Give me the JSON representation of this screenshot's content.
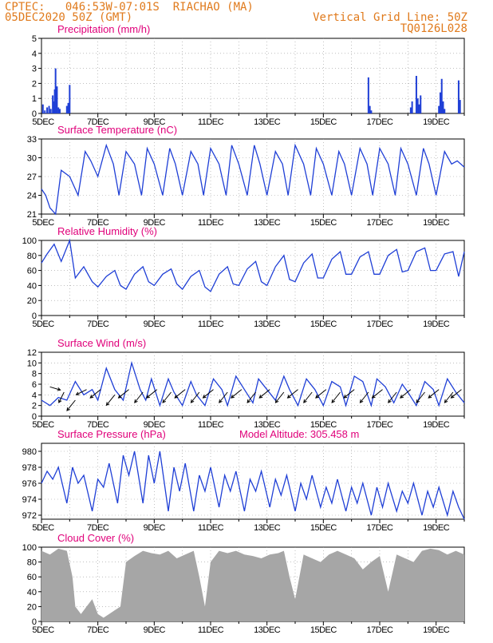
{
  "header": {
    "line1_left": "CPTEC:   046:53W-07:01S  RIACHAO (MA)",
    "line2_left": "05DEC2020 50Z (GMT)",
    "line2_right": "Vertical Grid Line: 50Z",
    "line3_right": "TQ0126L028"
  },
  "colors": {
    "header_text": "#e07a1c",
    "panel_title": "#e0007a",
    "series": "#1f3fd6",
    "cloud": "#a6a6a6",
    "wind_arrow": "#000000"
  },
  "x_tick_labels": [
    "5DEC",
    "7DEC",
    "9DEC",
    "11DEC",
    "13DEC",
    "15DEC",
    "17DEC",
    "19DEC"
  ],
  "chart_data": [
    {
      "type": "bar",
      "title": "Precipitation (mm/h)",
      "ylim": [
        0,
        5
      ],
      "yticks": [
        "0",
        "1",
        "2",
        "3",
        "4",
        "5"
      ],
      "x_days": [
        0.05,
        0.12,
        0.2,
        0.27,
        0.33,
        0.4,
        0.44,
        0.47,
        0.5,
        0.55,
        0.6,
        0.65,
        0.9,
        0.95,
        1.0,
        11.6,
        11.65,
        11.7,
        13.1,
        13.15,
        13.3,
        13.35,
        13.4,
        13.45,
        14.1,
        14.15,
        14.2,
        14.25,
        14.3,
        14.8,
        14.85
      ],
      "values": [
        0.6,
        0.2,
        0.4,
        0.5,
        0.3,
        1.2,
        0.8,
        1.6,
        3.0,
        1.8,
        0.4,
        0.3,
        0.5,
        0.7,
        1.9,
        2.4,
        0.5,
        0.2,
        0.4,
        0.8,
        2.5,
        1.0,
        0.6,
        1.2,
        0.5,
        1.4,
        2.3,
        0.8,
        0.3,
        2.2,
        0.9
      ]
    },
    {
      "type": "line",
      "title": "Surface Temperature (nC)",
      "ylim": [
        21,
        33
      ],
      "yticks": [
        "21",
        "24",
        "27",
        "30",
        "33"
      ],
      "series": [
        {
          "x": [
            0,
            0.15,
            0.3,
            0.5,
            0.7,
            1.0,
            1.3,
            1.55,
            1.75,
            2.0,
            2.3,
            2.55,
            2.75,
            3.0,
            3.3,
            3.55,
            3.75,
            4.0,
            4.3,
            4.55,
            4.75,
            5.0,
            5.3,
            5.55,
            5.75,
            6.0,
            6.3,
            6.55,
            6.75,
            7.0,
            7.3,
            7.55,
            7.75,
            8.0,
            8.3,
            8.55,
            8.75,
            9.0,
            9.3,
            9.55,
            9.75,
            10.0,
            10.3,
            10.55,
            10.75,
            11.0,
            11.3,
            11.55,
            11.75,
            12.0,
            12.3,
            12.55,
            12.75,
            13.0,
            13.3,
            13.55,
            13.75,
            14.0,
            14.3,
            14.55,
            14.75,
            15.0
          ],
          "values": [
            25,
            24,
            22,
            21,
            28,
            27,
            24,
            31,
            29.5,
            27,
            32,
            29,
            24,
            31,
            29,
            24,
            31.5,
            29,
            24,
            31.5,
            29,
            24,
            31,
            29,
            24,
            31.5,
            29,
            24,
            32,
            29,
            24,
            32,
            29,
            24,
            31,
            29,
            24,
            32,
            29,
            24,
            31.5,
            29,
            24,
            31,
            29,
            24,
            31.5,
            29,
            24,
            31.5,
            29,
            24,
            31.5,
            29,
            24,
            31.5,
            29,
            24,
            31,
            29,
            29.5,
            28.5
          ]
        }
      ]
    },
    {
      "type": "line",
      "title": "Relative Humidity (%)",
      "ylim": [
        0,
        100
      ],
      "yticks": [
        "0",
        "20",
        "40",
        "60",
        "80",
        "100"
      ],
      "series": [
        {
          "x": [
            0,
            0.2,
            0.45,
            0.7,
            1.0,
            1.2,
            1.5,
            1.8,
            2.0,
            2.3,
            2.6,
            2.8,
            3.0,
            3.3,
            3.6,
            3.8,
            4.0,
            4.3,
            4.6,
            4.8,
            5.0,
            5.3,
            5.6,
            5.8,
            6.0,
            6.3,
            6.6,
            6.8,
            7.0,
            7.3,
            7.6,
            7.8,
            8.0,
            8.3,
            8.6,
            8.8,
            9.0,
            9.3,
            9.6,
            9.8,
            10.0,
            10.3,
            10.6,
            10.8,
            11.0,
            11.3,
            11.6,
            11.8,
            12.0,
            12.3,
            12.6,
            12.8,
            13.0,
            13.3,
            13.6,
            13.8,
            14.0,
            14.3,
            14.6,
            14.8,
            15.0
          ],
          "values": [
            70,
            82,
            95,
            72,
            100,
            50,
            65,
            45,
            38,
            52,
            60,
            40,
            35,
            55,
            65,
            45,
            40,
            55,
            62,
            42,
            35,
            52,
            60,
            38,
            32,
            55,
            65,
            42,
            40,
            62,
            72,
            45,
            40,
            65,
            80,
            48,
            45,
            70,
            82,
            50,
            50,
            75,
            85,
            55,
            55,
            78,
            85,
            55,
            55,
            80,
            88,
            58,
            60,
            85,
            90,
            60,
            60,
            82,
            85,
            52,
            85
          ]
        }
      ]
    },
    {
      "type": "line",
      "title": "Surface Wind (m/s)",
      "ylim": [
        0,
        12
      ],
      "yticks": [
        "0",
        "2",
        "4",
        "6",
        "8",
        "10",
        "12"
      ],
      "series": [
        {
          "x": [
            0,
            0.3,
            0.6,
            0.9,
            1.2,
            1.5,
            1.8,
            2.0,
            2.3,
            2.6,
            2.9,
            3.2,
            3.5,
            3.7,
            3.9,
            4.2,
            4.5,
            4.7,
            5.0,
            5.3,
            5.5,
            5.8,
            6.1,
            6.4,
            6.6,
            6.9,
            7.2,
            7.5,
            7.7,
            8.0,
            8.3,
            8.6,
            8.8,
            9.1,
            9.4,
            9.7,
            10.0,
            10.3,
            10.6,
            10.8,
            11.1,
            11.4,
            11.7,
            11.9,
            12.2,
            12.5,
            12.8,
            13.0,
            13.3,
            13.6,
            13.9,
            14.1,
            14.4,
            14.7,
            15.0
          ],
          "values": [
            3.0,
            2.0,
            3.5,
            3.0,
            6.5,
            4.0,
            5.0,
            3.0,
            9.0,
            5.0,
            3.0,
            10.0,
            5.0,
            3.0,
            7.0,
            2.0,
            7.0,
            4.5,
            2.0,
            6.5,
            4.0,
            2.0,
            7.0,
            5.0,
            2.0,
            7.5,
            5.0,
            2.5,
            7.0,
            5.0,
            3.0,
            7.5,
            5.0,
            2.0,
            7.0,
            5.0,
            2.0,
            6.5,
            5.5,
            2.0,
            7.5,
            6.5,
            2.0,
            7.0,
            5.5,
            2.5,
            6.0,
            4.5,
            2.0,
            6.5,
            5.0,
            2.0,
            7.0,
            4.5,
            2.5
          ]
        }
      ],
      "wind_vectors": {
        "x": [
          0.3,
          0.8,
          1.2,
          1.6,
          2.1,
          2.6,
          3.1,
          3.6,
          4.1,
          4.6,
          5.1,
          5.6,
          6.1,
          6.6,
          7.1,
          7.6,
          8.1,
          8.6,
          9.1,
          9.6,
          10.1,
          10.6,
          11.1,
          11.6,
          12.1,
          12.6,
          13.1,
          13.6,
          14.1,
          14.6,
          14.9
        ],
        "y": [
          5.5,
          4.5,
          3.0,
          5.0,
          5.0,
          4.0,
          5.0,
          4.5,
          5.0,
          4.5,
          5.0,
          4.5,
          5.0,
          4.5,
          5.0,
          4.5,
          5.0,
          4.5,
          5.0,
          4.5,
          5.0,
          4.5,
          5.0,
          4.5,
          5.0,
          4.5,
          5.0,
          4.5,
          5.0,
          4.5,
          5.0
        ],
        "u": [
          1.0,
          -0.5,
          -0.8,
          -1.0,
          -1.0,
          -0.8,
          -1.0,
          -0.8,
          -1.0,
          -0.8,
          -1.0,
          -0.8,
          -1.0,
          -0.8,
          -1.0,
          -0.8,
          -1.0,
          -0.8,
          -1.0,
          -0.8,
          -1.0,
          -0.8,
          -1.0,
          -0.8,
          -1.0,
          -0.8,
          -1.0,
          -0.8,
          -1.0,
          -0.8,
          -1.0
        ],
        "v": [
          -0.3,
          -1.0,
          -1.0,
          -0.5,
          -0.8,
          -1.0,
          -0.8,
          -1.0,
          -0.8,
          -1.0,
          -0.8,
          -1.0,
          -0.8,
          -1.0,
          -0.8,
          -1.0,
          -0.8,
          -1.0,
          -0.8,
          -1.0,
          -0.8,
          -1.0,
          -0.8,
          -1.0,
          -0.8,
          -1.0,
          -0.8,
          -1.0,
          -0.8,
          -1.0,
          -0.8
        ]
      }
    },
    {
      "type": "line",
      "title": "Surface Pressure (hPa)",
      "annotation": "Model Altitude: 305.458 m",
      "ylim": [
        971.5,
        981
      ],
      "yticks": [
        "972",
        "974",
        "976",
        "978",
        "980"
      ],
      "series": [
        {
          "x": [
            0,
            0.2,
            0.4,
            0.6,
            0.9,
            1.1,
            1.3,
            1.5,
            1.8,
            2.0,
            2.2,
            2.4,
            2.7,
            2.9,
            3.1,
            3.3,
            3.6,
            3.8,
            4.0,
            4.2,
            4.5,
            4.7,
            4.9,
            5.1,
            5.4,
            5.6,
            5.8,
            6.0,
            6.3,
            6.5,
            6.7,
            6.9,
            7.2,
            7.4,
            7.6,
            7.8,
            8.1,
            8.3,
            8.5,
            8.7,
            9.0,
            9.2,
            9.4,
            9.6,
            9.9,
            10.1,
            10.3,
            10.5,
            10.8,
            11.0,
            11.2,
            11.4,
            11.7,
            11.9,
            12.1,
            12.3,
            12.6,
            12.8,
            13.0,
            13.2,
            13.5,
            13.7,
            13.9,
            14.1,
            14.4,
            14.6,
            14.8,
            15.0
          ],
          "values": [
            976,
            977.5,
            976.5,
            978,
            973.5,
            978,
            976,
            977,
            972.5,
            976.5,
            975.5,
            978.5,
            973.5,
            979.5,
            977,
            980,
            973.5,
            979.5,
            976,
            980,
            972.5,
            978,
            975,
            978.5,
            972.5,
            977,
            975,
            978,
            973,
            977,
            975,
            977.5,
            972.5,
            976.5,
            975,
            977.5,
            973,
            976.5,
            974.5,
            977,
            972.5,
            976,
            974,
            977,
            973,
            975.5,
            973.5,
            976.5,
            972.5,
            975.5,
            973.5,
            976,
            972,
            975.5,
            973,
            976,
            972.5,
            975,
            973.5,
            976,
            972,
            975,
            973,
            975.5,
            972,
            975,
            973,
            971.5
          ]
        }
      ]
    },
    {
      "type": "area",
      "title": "Cloud Cover (%)",
      "ylim": [
        0,
        100
      ],
      "yticks": [
        "0",
        "20",
        "40",
        "60",
        "80",
        "100"
      ],
      "series": [
        {
          "x": [
            0,
            0.3,
            0.6,
            0.9,
            1.1,
            1.2,
            1.4,
            1.6,
            1.8,
            2.0,
            2.2,
            2.4,
            2.6,
            2.8,
            3.0,
            3.3,
            3.6,
            3.9,
            4.2,
            4.5,
            4.8,
            5.1,
            5.4,
            5.6,
            5.8,
            6.0,
            6.3,
            6.6,
            6.9,
            7.2,
            7.5,
            7.8,
            8.1,
            8.4,
            8.6,
            8.8,
            9.0,
            9.3,
            9.6,
            9.9,
            10.2,
            10.5,
            10.8,
            11.1,
            11.4,
            11.7,
            12.0,
            12.3,
            12.6,
            12.9,
            13.2,
            13.5,
            13.8,
            14.1,
            14.4,
            14.7,
            15.0
          ],
          "values": [
            95,
            90,
            98,
            95,
            60,
            20,
            10,
            20,
            30,
            10,
            5,
            10,
            15,
            20,
            80,
            88,
            95,
            92,
            90,
            95,
            85,
            90,
            95,
            60,
            20,
            80,
            95,
            92,
            95,
            90,
            88,
            85,
            90,
            92,
            95,
            60,
            30,
            90,
            85,
            80,
            90,
            95,
            90,
            85,
            70,
            80,
            88,
            40,
            90,
            85,
            80,
            95,
            98,
            96,
            90,
            95,
            90
          ]
        }
      ]
    }
  ]
}
